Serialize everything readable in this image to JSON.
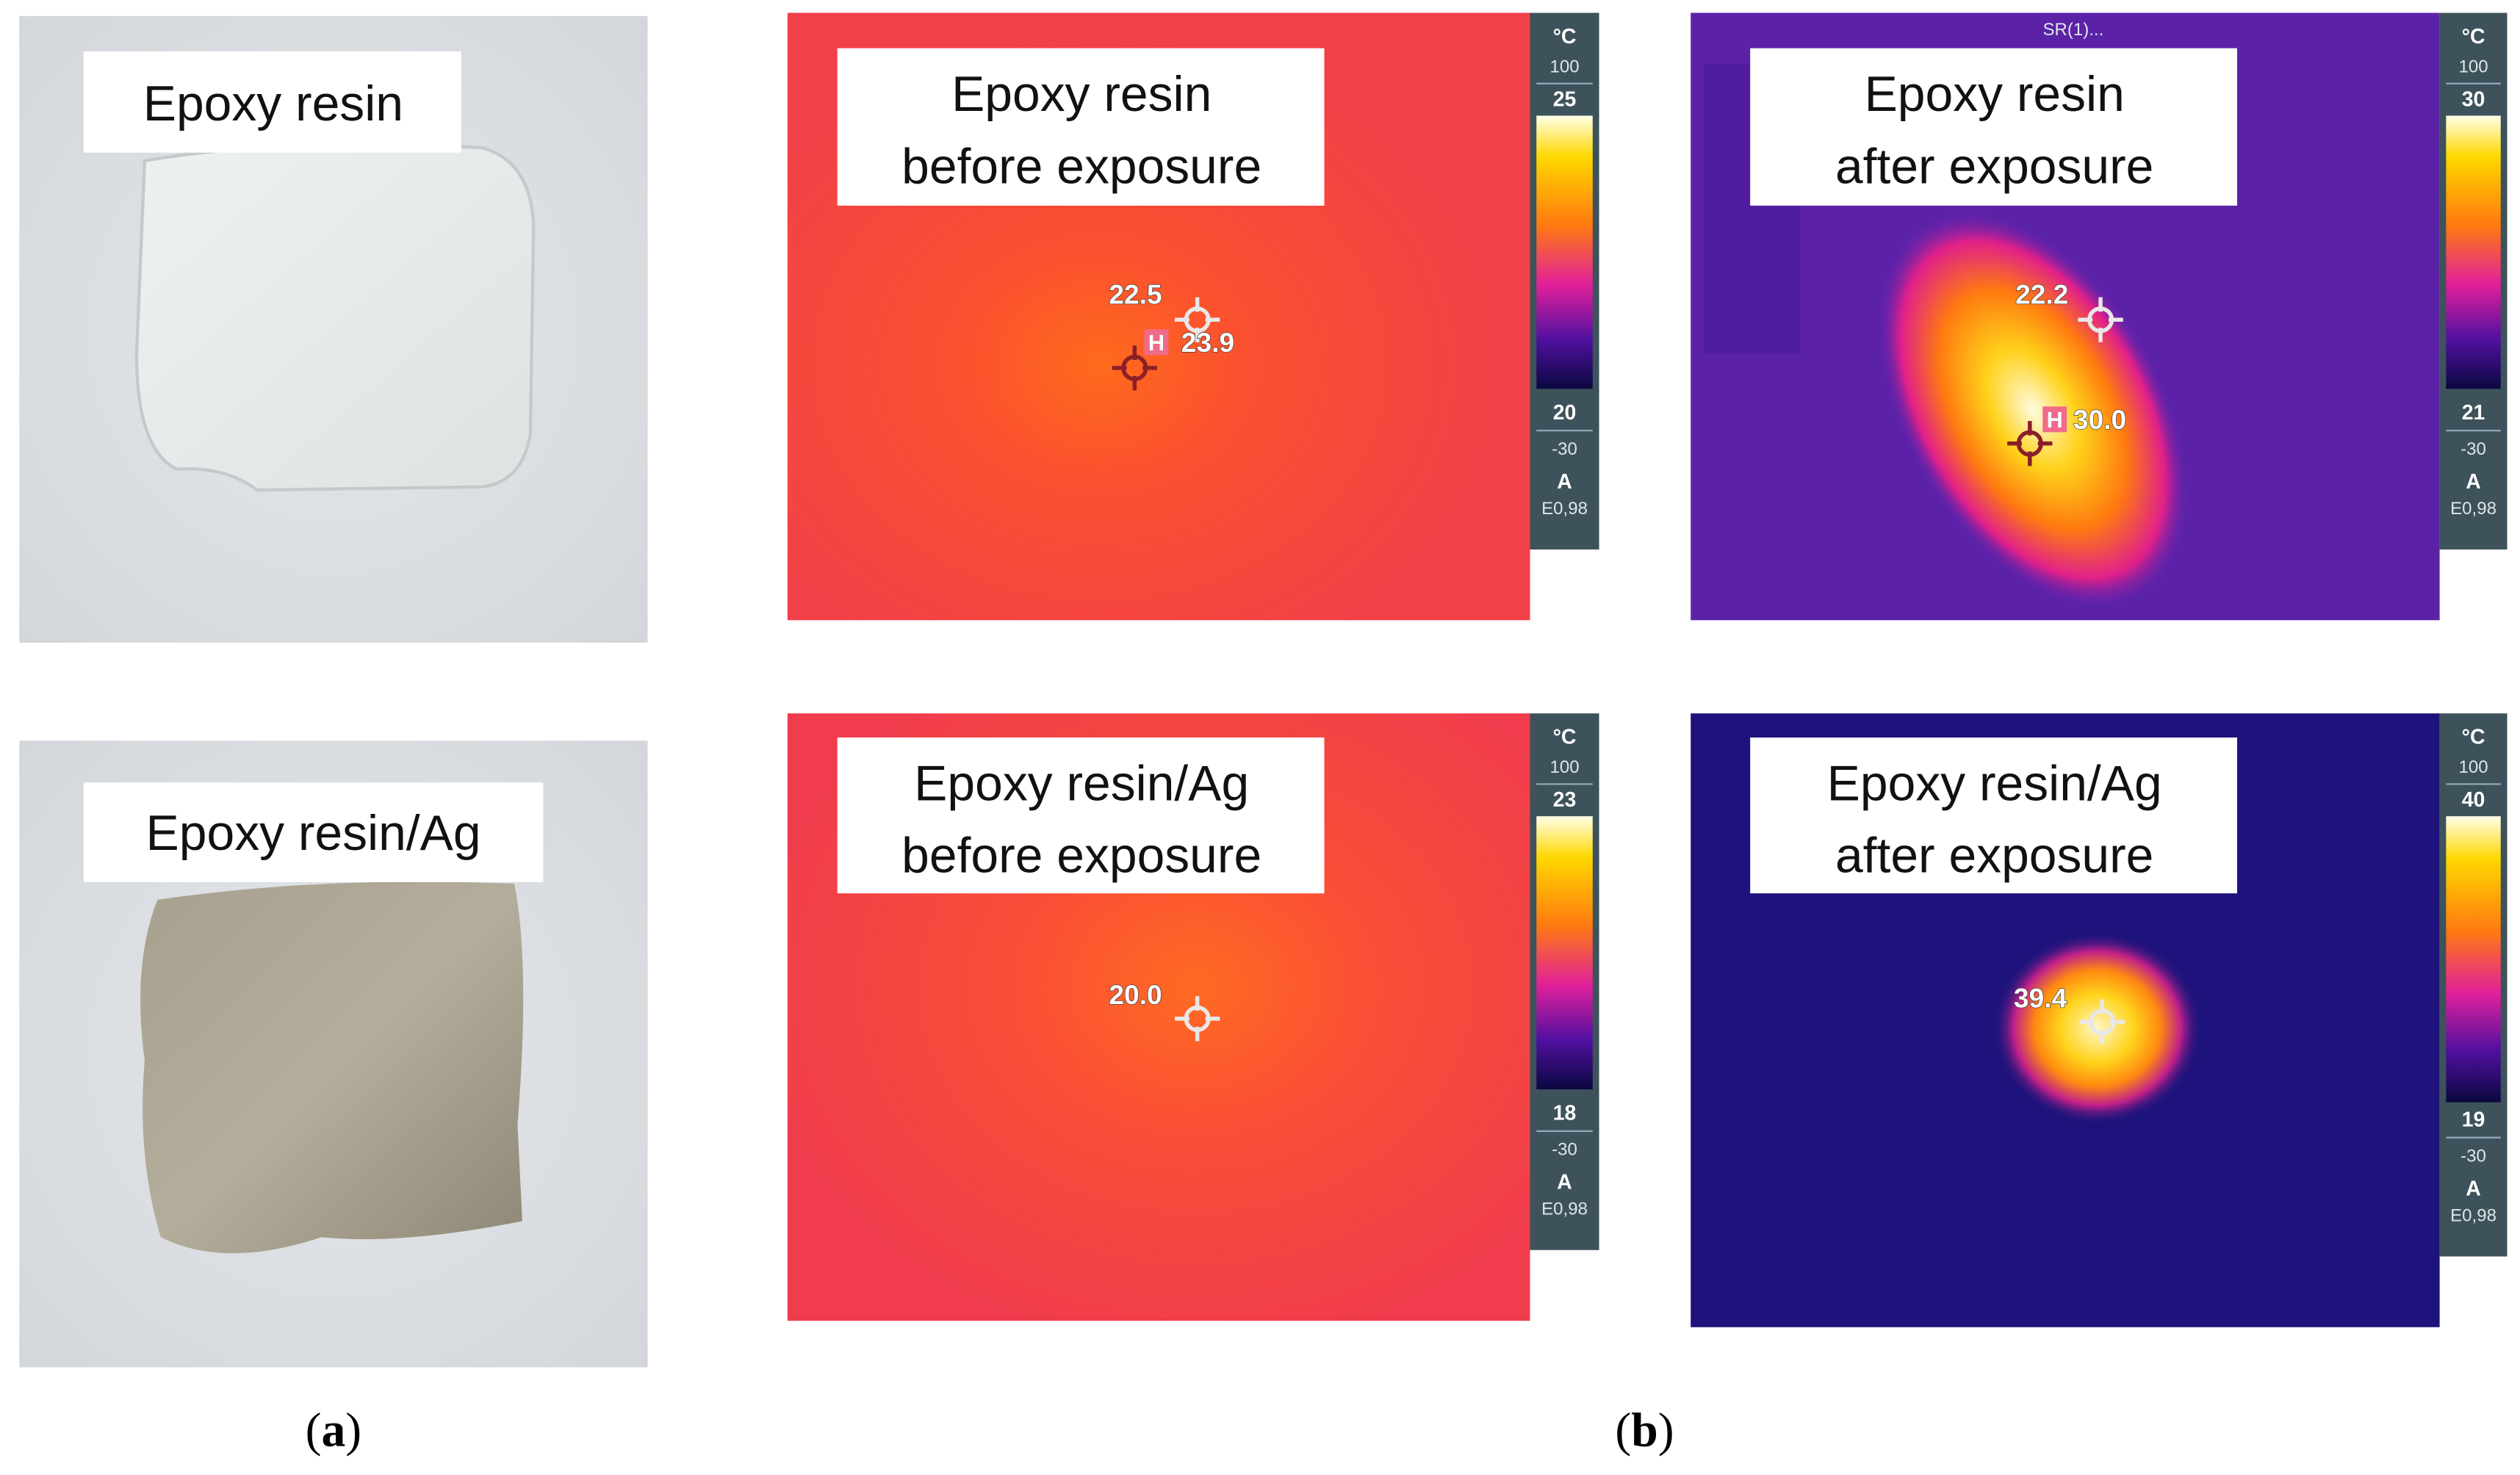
{
  "photos": [
    {
      "label": "Epoxy resin"
    },
    {
      "label": "Epoxy resin/Ag"
    }
  ],
  "thermal": [
    {
      "label": [
        "Epoxy resin",
        "before exposure"
      ],
      "unit": "°C",
      "range_top": "100",
      "max": "25",
      "min": "20",
      "range_bottom": "-30",
      "mode": "A",
      "emissivity": "E0,98",
      "spots": [
        {
          "text": "22.5"
        },
        {
          "marker": "H",
          "text": "23.9"
        }
      ]
    },
    {
      "header": "SR(1)...",
      "label": [
        "Epoxy resin",
        "after exposure"
      ],
      "unit": "°C",
      "range_top": "100",
      "max": "30",
      "min": "21",
      "range_bottom": "-30",
      "mode": "A",
      "emissivity": "E0,98",
      "spots": [
        {
          "text": "22.2"
        },
        {
          "marker": "H",
          "text": "30.0"
        }
      ]
    },
    {
      "label": [
        "Epoxy resin/Ag",
        "before exposure"
      ],
      "unit": "°C",
      "range_top": "100",
      "max": "23",
      "min": "18",
      "range_bottom": "-30",
      "mode": "A",
      "emissivity": "E0,98",
      "spots": [
        {
          "text": "20.0"
        }
      ]
    },
    {
      "label": [
        "Epoxy resin/Ag",
        "after exposure"
      ],
      "unit": "°C",
      "range_top": "100",
      "max": "40",
      "min": "19",
      "range_bottom": "-30",
      "mode": "A",
      "emissivity": "E0,98",
      "spots": [
        {
          "text": "39.4"
        }
      ]
    }
  ],
  "captions": [
    {
      "open": "(",
      "letter": "a",
      "close": ")"
    },
    {
      "open": "(",
      "letter": "b",
      "close": ")"
    }
  ]
}
